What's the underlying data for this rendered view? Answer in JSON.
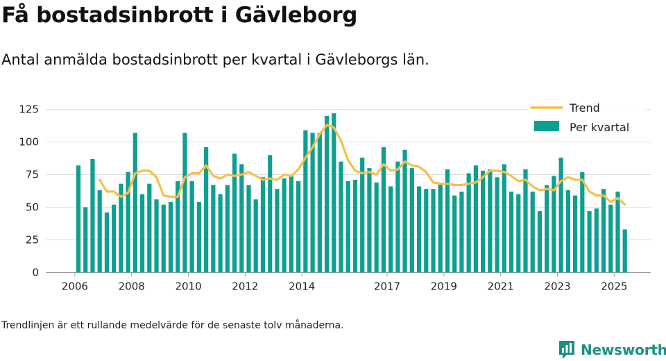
{
  "title": "Få bostadsinbrott i Gävleborg",
  "subtitle": "Antal anmälda bostadsinbrott per kvartal i Gävleborgs län.",
  "note": "Trendlinjen är ett rullande medelvärde för de senaste tolv månaderna.",
  "brand": "Newsworthy",
  "colors": {
    "bar": "#0e9f93",
    "trend": "#f5c04a",
    "grid": "#dddddd",
    "brand": "#1f8f84"
  },
  "chart_data": {
    "type": "bar",
    "xlabel": "",
    "ylabel": "",
    "ylim": [
      0,
      125
    ],
    "yticks": [
      0,
      25,
      50,
      75,
      100,
      125
    ],
    "xticks": [
      "2006",
      "2008",
      "2010",
      "2012",
      "2014",
      "2017",
      "2019",
      "2021",
      "2023",
      "2025"
    ],
    "grid": true,
    "legend": "top-right",
    "start_quarter": "2006 Q1",
    "series": [
      {
        "name": "Per kvartal",
        "type": "bar",
        "values": [
          82,
          50,
          87,
          63,
          46,
          52,
          68,
          77,
          107,
          60,
          68,
          56,
          52,
          54,
          70,
          107,
          70,
          54,
          96,
          67,
          60,
          67,
          91,
          83,
          67,
          56,
          73,
          90,
          64,
          72,
          74,
          70,
          109,
          107,
          107,
          120,
          122,
          85,
          70,
          71,
          88,
          80,
          69,
          96,
          66,
          85,
          94,
          80,
          66,
          64,
          64,
          68,
          79,
          59,
          62,
          76,
          82,
          78,
          79,
          73,
          83,
          62,
          60,
          79,
          62,
          47,
          67,
          74,
          88,
          63,
          59,
          77,
          47,
          49,
          64,
          52,
          62,
          33
        ]
      },
      {
        "name": "Trend",
        "type": "line",
        "values": [
          null,
          null,
          null,
          71,
          62,
          62,
          58,
          61,
          76,
          78,
          78,
          73,
          59,
          58,
          58,
          73,
          76,
          76,
          82,
          74,
          72,
          75,
          74,
          75,
          77,
          74,
          71,
          72,
          71,
          75,
          74,
          79,
          88,
          96,
          106,
          113,
          111,
          101,
          86,
          78,
          76,
          77,
          75,
          83,
          78,
          79,
          85,
          82,
          81,
          77,
          69,
          68,
          68,
          67,
          67,
          68,
          69,
          73,
          78,
          78,
          77,
          74,
          70,
          71,
          66,
          63,
          64,
          63,
          70,
          73,
          71,
          71,
          62,
          59,
          59,
          54,
          57,
          52
        ]
      }
    ]
  }
}
